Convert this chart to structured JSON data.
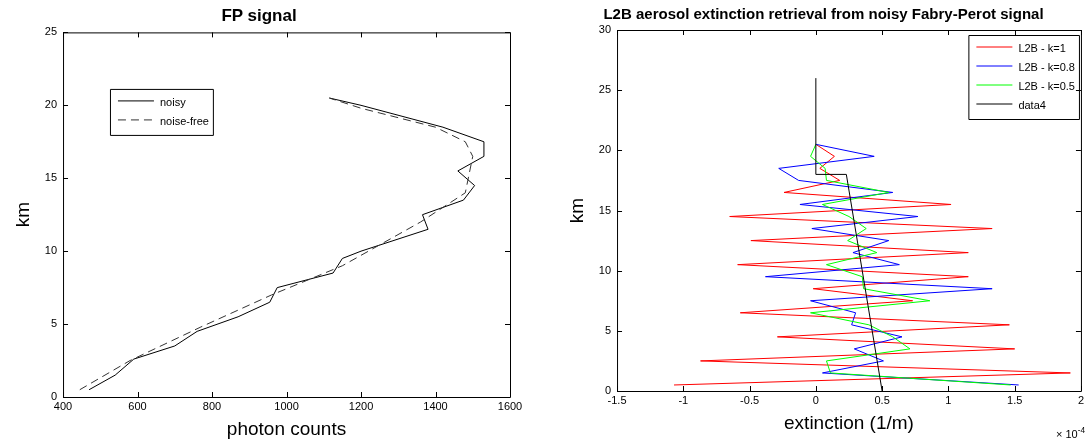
{
  "chart_data": [
    {
      "type": "line",
      "title": "FP signal",
      "xlabel": "photon counts",
      "ylabel": "km",
      "xlim": [
        400,
        1600
      ],
      "xticks": [
        400,
        600,
        800,
        1000,
        1200,
        1400,
        1600
      ],
      "ylim": [
        0,
        25
      ],
      "yticks": [
        0,
        5,
        10,
        15,
        20,
        25
      ],
      "grid": false,
      "legend": "top left",
      "marker": "none",
      "series": [
        {
          "name": "noisy",
          "color": "#000000",
          "line_style": "solid",
          "x": [
            470,
            540,
            590,
            700,
            760,
            870,
            955,
            975,
            1020,
            1125,
            1150,
            1200,
            1380,
            1365,
            1475,
            1505,
            1460,
            1530,
            1530,
            1420,
            1200,
            1115
          ],
          "values": [
            0.5,
            1.5,
            2.6,
            3.5,
            4.5,
            5.5,
            6.5,
            7.5,
            7.8,
            8.5,
            9.5,
            10,
            11.5,
            12.5,
            13.5,
            14.5,
            15.5,
            16.5,
            17.5,
            18.5,
            20,
            20.5
          ]
        },
        {
          "name": "noise-free",
          "color": "#333333",
          "line_style": "dashed",
          "x": [
            445,
            580,
            770,
            960,
            1150,
            1360,
            1480,
            1500,
            1480,
            1400,
            1200,
            1115
          ],
          "values": [
            0.5,
            2.5,
            4.8,
            7,
            9,
            12,
            14,
            16.5,
            17.5,
            18.5,
            19.8,
            20.5
          ]
        }
      ]
    },
    {
      "type": "line",
      "title": "L2B aerosol extinction retrieval from noisy Fabry-Perot signal",
      "xlabel": "extinction (1/m)",
      "ylabel": "km",
      "annotations": [
        "× 10$^{-4}$"
      ],
      "xlim": [
        -1.5,
        2
      ],
      "xticks": [
        -1.5,
        -1,
        -0.5,
        0,
        0.5,
        1,
        1.5,
        2
      ],
      "ylim": [
        0,
        30
      ],
      "yticks": [
        0,
        5,
        10,
        15,
        20,
        25,
        30
      ],
      "grid": false,
      "legend": "top right",
      "marker": "none",
      "series": [
        {
          "name": "L2B - k=1",
          "color": "#ff0000",
          "line_style": "solid",
          "x": [
            -1.07,
            1.92,
            -0.87,
            1.5,
            -0.29,
            1.46,
            -0.57,
            0.73,
            -0.02,
            1.15,
            -0.59,
            1.15,
            -0.49,
            1.33,
            -0.65,
            1.02,
            -0.24,
            0.18,
            0.03,
            0.14,
            0
          ],
          "values": [
            0.5,
            1.5,
            2.5,
            3.5,
            4.5,
            5.5,
            6.5,
            7.5,
            8.5,
            9.5,
            10.5,
            11.5,
            12.5,
            13.5,
            14.5,
            15.5,
            16.5,
            17.5,
            18.5,
            19.5,
            20.5
          ]
        },
        {
          "name": "L2B - k=0.8",
          "color": "#0000ff",
          "line_style": "solid",
          "x": [
            1.53,
            0.05,
            0.51,
            0.29,
            0.65,
            0.27,
            0.3,
            -0.04,
            1.33,
            -0.38,
            0.63,
            0.28,
            0.55,
            -0.03,
            0.77,
            -0.12,
            0.58,
            -0.13,
            -0.28,
            0.44,
            0
          ],
          "values": [
            0.5,
            1.5,
            2.5,
            3.5,
            4.5,
            5.5,
            6.5,
            7.5,
            8.5,
            9.5,
            10.5,
            11.5,
            12.5,
            13.5,
            14.5,
            15.5,
            16.5,
            17.5,
            18.5,
            19.5,
            20.5
          ]
        },
        {
          "name": "L2B - k=0.5",
          "color": "#00ff00",
          "line_style": "solid",
          "x": [
            1.47,
            0.11,
            0.08,
            0.71,
            0.58,
            0.4,
            -0.04,
            0.86,
            0.36,
            0.35,
            0.08,
            0.46,
            0.24,
            0.38,
            0.25,
            0.05,
            0.55,
            0.08,
            0.07,
            -0.04,
            0
          ],
          "values": [
            0.5,
            1.5,
            2.5,
            3.5,
            4.5,
            5.5,
            6.5,
            7.5,
            8.5,
            9.5,
            10.5,
            11.5,
            12.5,
            13.5,
            14.5,
            15.5,
            16.5,
            17.5,
            18.5,
            19.5,
            20.5
          ]
        },
        {
          "name": "data4",
          "color": "#000000",
          "line_style": "solid",
          "x": [
            0.5,
            0.23,
            0,
            0
          ],
          "values": [
            0,
            18,
            18,
            26
          ]
        }
      ]
    }
  ]
}
